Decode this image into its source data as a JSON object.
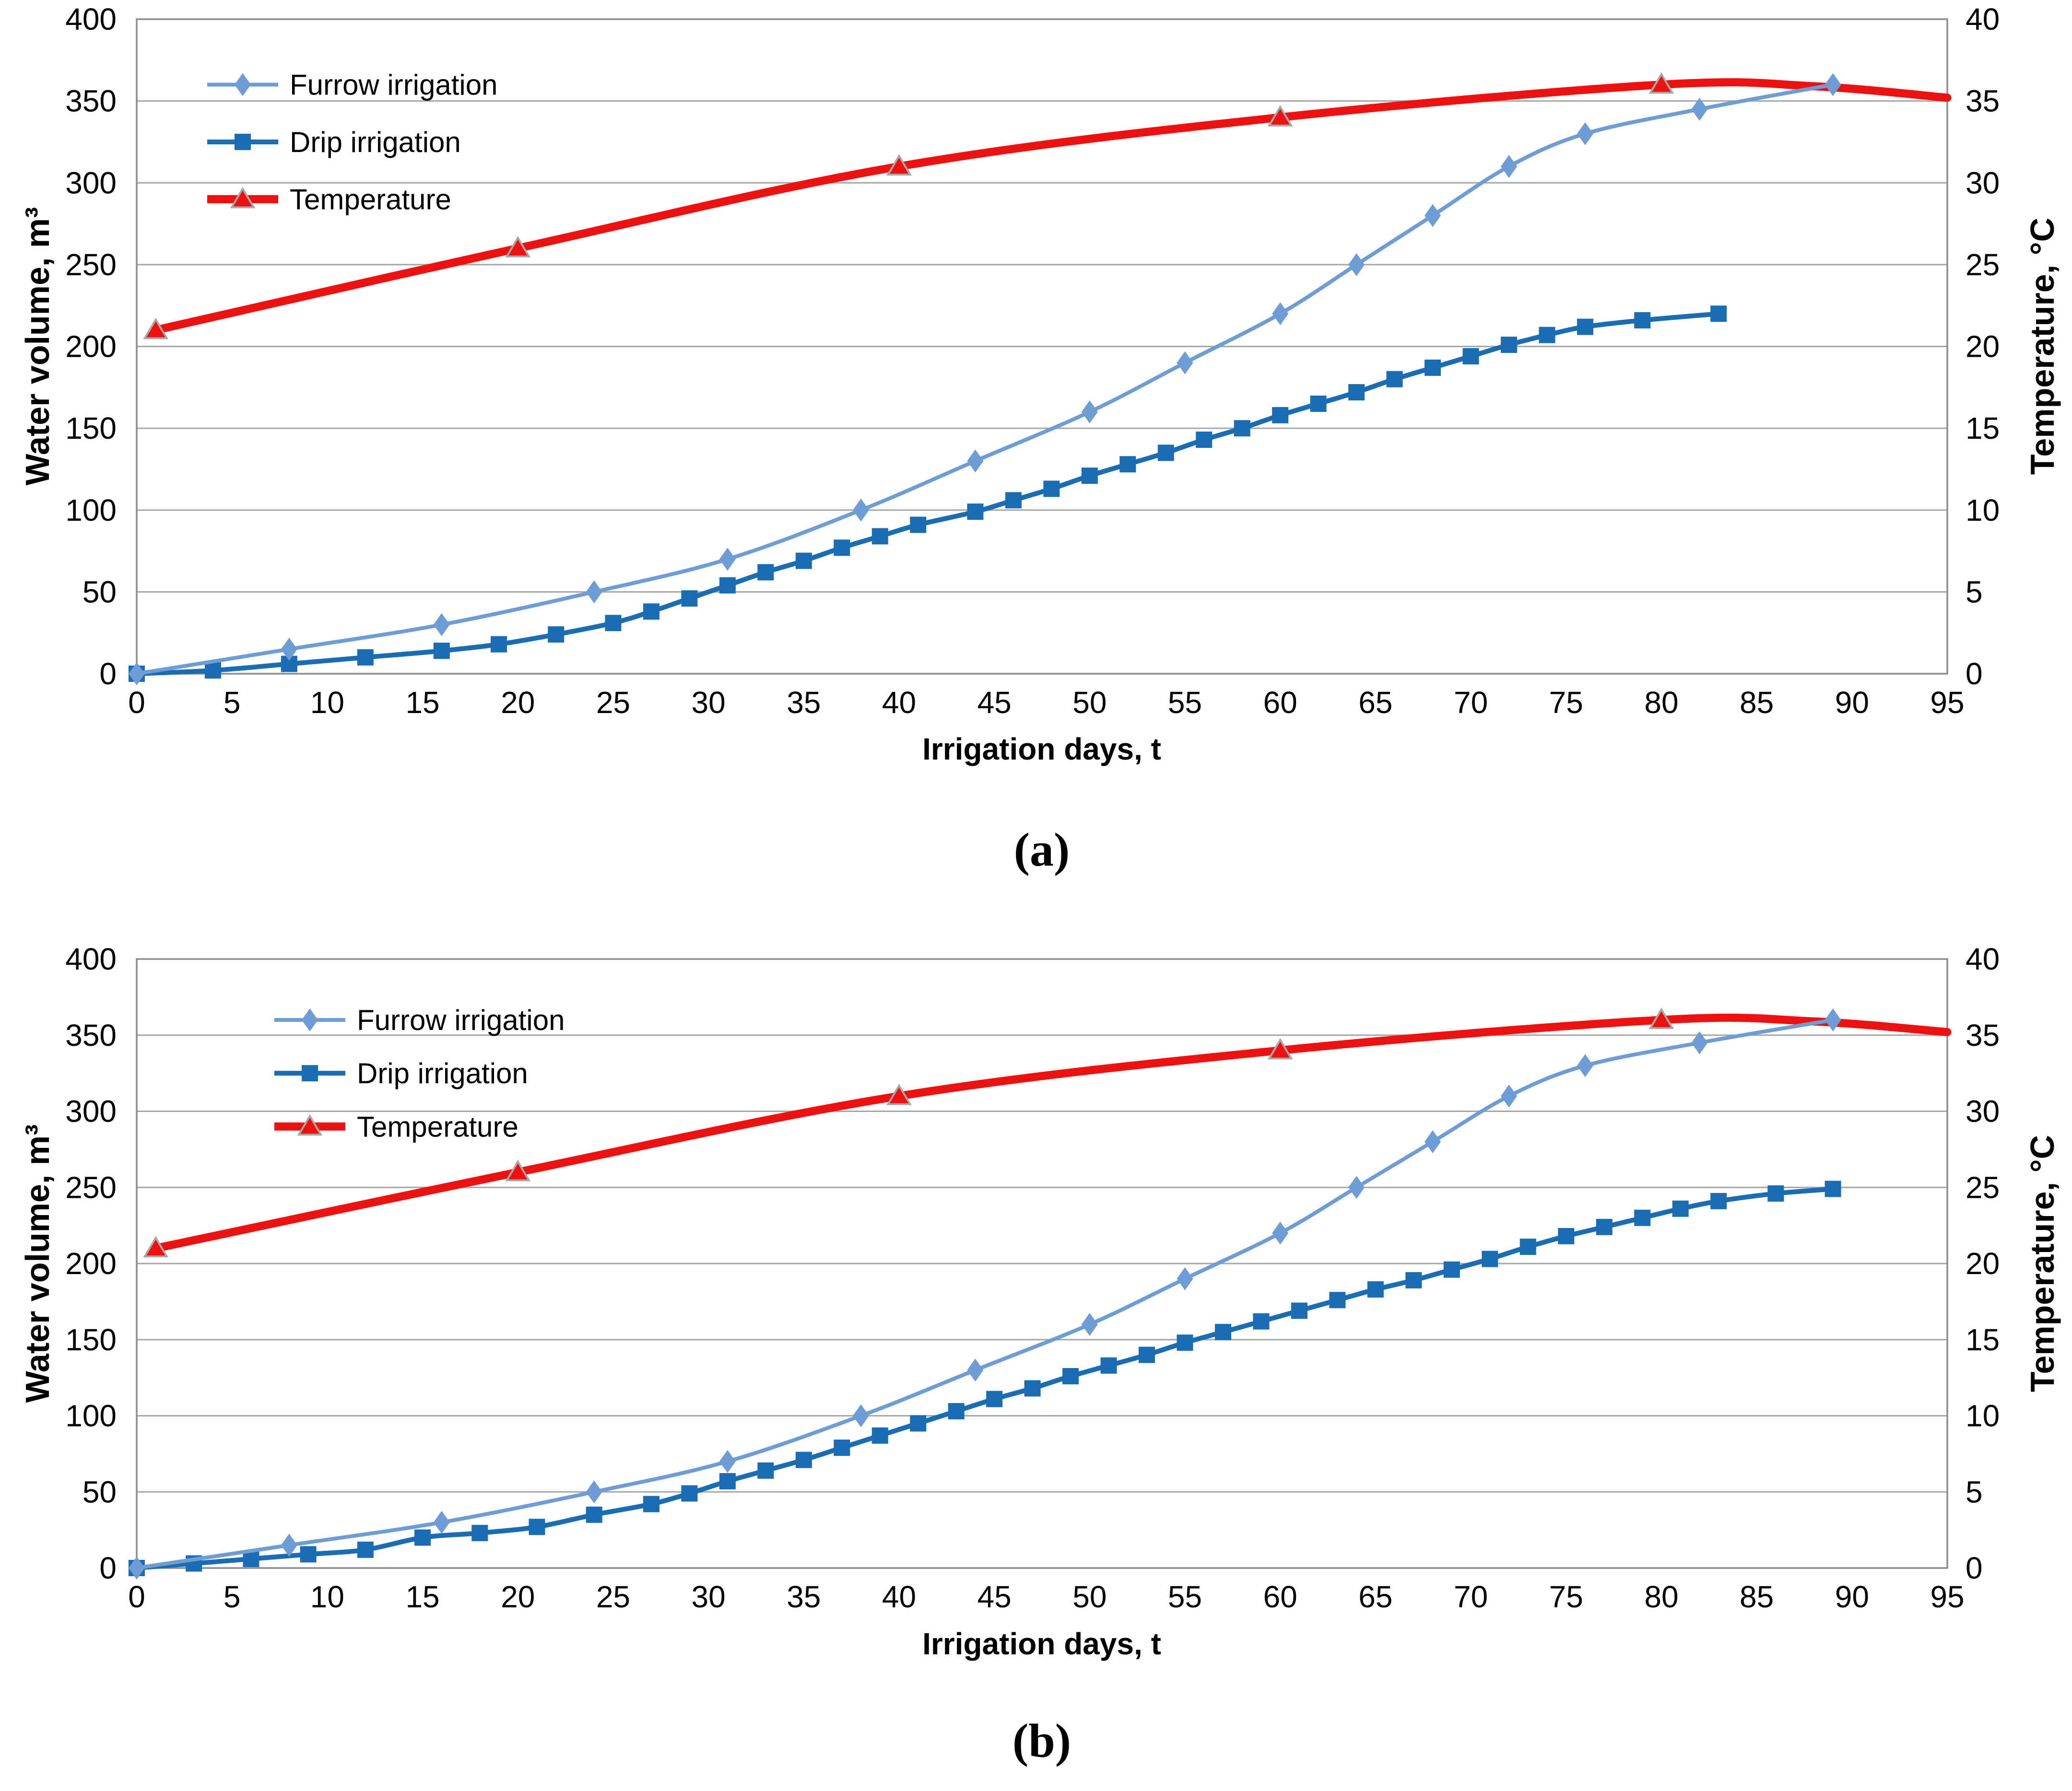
{
  "colors": {
    "furrow": "#6D9DD4",
    "drip": "#1A6CB3",
    "temperature": "#EE1110",
    "marker_outline": "#A9A9A9",
    "grid": "#A6A6A6",
    "axis_border": "#8C8C8C",
    "text": "#000000",
    "background": "#FFFFFF"
  },
  "chart_data": [
    {
      "id": "a",
      "type": "line",
      "caption": "(a)",
      "x_axis": {
        "label": "Irrigation days, t",
        "min": 0,
        "max": 95,
        "step": 5,
        "ticks": [
          0,
          5,
          10,
          15,
          20,
          25,
          30,
          35,
          40,
          45,
          50,
          55,
          60,
          65,
          70,
          75,
          80,
          85,
          90,
          95
        ]
      },
      "y_axis_left": {
        "label": "Water volume, m³",
        "min": 0,
        "max": 400,
        "step": 50,
        "ticks": [
          400,
          350,
          300,
          250,
          200,
          150,
          100,
          50,
          0
        ]
      },
      "y_axis_right": {
        "label": "Temperature, °C",
        "min": 0,
        "max": 40,
        "step": 5,
        "ticks": [
          40,
          35,
          30,
          25,
          20,
          15,
          10,
          5,
          0
        ]
      },
      "grid": "horizontal-only",
      "legend_position": "inside-top-left",
      "series": [
        {
          "name": "Furrow irrigation",
          "marker": "diamond",
          "color_key": "furrow",
          "axis": "left",
          "points": [
            [
              0,
              0
            ],
            [
              8,
              15
            ],
            [
              16,
              30
            ],
            [
              24,
              50
            ],
            [
              31,
              70
            ],
            [
              38,
              100
            ],
            [
              44,
              130
            ],
            [
              50,
              160
            ],
            [
              55,
              190
            ],
            [
              60,
              220
            ],
            [
              64,
              250
            ],
            [
              68,
              280
            ],
            [
              72,
              310
            ],
            [
              76,
              330
            ],
            [
              82,
              345
            ],
            [
              89,
              360
            ]
          ]
        },
        {
          "name": "Drip irrigation",
          "marker": "square",
          "color_key": "drip",
          "axis": "left",
          "points": [
            [
              0,
              0
            ],
            [
              4,
              2
            ],
            [
              8,
              6
            ],
            [
              12,
              10
            ],
            [
              16,
              14
            ],
            [
              19,
              18
            ],
            [
              22,
              24
            ],
            [
              25,
              31
            ],
            [
              27,
              38
            ],
            [
              29,
              46
            ],
            [
              31,
              54
            ],
            [
              33,
              62
            ],
            [
              35,
              69
            ],
            [
              37,
              77
            ],
            [
              39,
              84
            ],
            [
              41,
              91
            ],
            [
              44,
              99
            ],
            [
              46,
              106
            ],
            [
              48,
              113
            ],
            [
              50,
              121
            ],
            [
              52,
              128
            ],
            [
              54,
              135
            ],
            [
              56,
              143
            ],
            [
              58,
              150
            ],
            [
              60,
              158
            ],
            [
              62,
              165
            ],
            [
              64,
              172
            ],
            [
              66,
              180
            ],
            [
              68,
              187
            ],
            [
              70,
              194
            ],
            [
              72,
              201
            ],
            [
              74,
              207
            ],
            [
              76,
              212
            ],
            [
              79,
              216
            ],
            [
              83,
              220
            ]
          ]
        },
        {
          "name": "Temperature",
          "marker": "triangle",
          "color_key": "temperature",
          "axis": "right",
          "points": [
            [
              1,
              21
            ],
            [
              20,
              26
            ],
            [
              40,
              31
            ],
            [
              60,
              34
            ],
            [
              80,
              36
            ],
            [
              88,
              35.9
            ],
            [
              95,
              35.2
            ]
          ],
          "marker_days": [
            1,
            20,
            40,
            60,
            80
          ]
        }
      ]
    },
    {
      "id": "b",
      "type": "line",
      "caption": "(b)",
      "x_axis": {
        "label": "Irrigation days, t",
        "min": 0,
        "max": 95,
        "step": 5,
        "ticks": [
          0,
          5,
          10,
          15,
          20,
          25,
          30,
          35,
          40,
          45,
          50,
          55,
          60,
          65,
          70,
          75,
          80,
          85,
          90,
          95
        ]
      },
      "y_axis_left": {
        "label": "Water volume, m³",
        "min": 0,
        "max": 400,
        "step": 50,
        "ticks": [
          400,
          350,
          300,
          250,
          200,
          150,
          100,
          50,
          0
        ]
      },
      "y_axis_right": {
        "label": "Temperature, °C",
        "min": 0,
        "max": 40,
        "step": 5,
        "ticks": [
          40,
          35,
          30,
          25,
          20,
          15,
          10,
          5,
          0
        ]
      },
      "grid": "horizontal-only",
      "legend_position": "inside-top-left",
      "series": [
        {
          "name": "Furrow irrigation",
          "marker": "diamond",
          "color_key": "furrow",
          "axis": "left",
          "points": [
            [
              0,
              0
            ],
            [
              8,
              15
            ],
            [
              16,
              30
            ],
            [
              24,
              50
            ],
            [
              31,
              70
            ],
            [
              38,
              100
            ],
            [
              44,
              130
            ],
            [
              50,
              160
            ],
            [
              55,
              190
            ],
            [
              60,
              220
            ],
            [
              64,
              250
            ],
            [
              68,
              280
            ],
            [
              72,
              310
            ],
            [
              76,
              330
            ],
            [
              82,
              345
            ],
            [
              89,
              360
            ]
          ]
        },
        {
          "name": "Drip irrigation",
          "marker": "square",
          "color_key": "drip",
          "axis": "left",
          "points": [
            [
              0,
              0
            ],
            [
              3,
              3
            ],
            [
              6,
              6
            ],
            [
              9,
              9
            ],
            [
              12,
              12
            ],
            [
              15,
              20
            ],
            [
              18,
              23
            ],
            [
              21,
              27
            ],
            [
              24,
              35
            ],
            [
              27,
              42
            ],
            [
              29,
              49
            ],
            [
              31,
              57
            ],
            [
              33,
              64
            ],
            [
              35,
              71
            ],
            [
              37,
              79
            ],
            [
              39,
              87
            ],
            [
              41,
              95
            ],
            [
              43,
              103
            ],
            [
              45,
              111
            ],
            [
              47,
              118
            ],
            [
              49,
              126
            ],
            [
              51,
              133
            ],
            [
              53,
              140
            ],
            [
              55,
              148
            ],
            [
              57,
              155
            ],
            [
              59,
              162
            ],
            [
              61,
              169
            ],
            [
              63,
              176
            ],
            [
              65,
              183
            ],
            [
              67,
              189
            ],
            [
              69,
              196
            ],
            [
              71,
              203
            ],
            [
              73,
              211
            ],
            [
              75,
              218
            ],
            [
              77,
              224
            ],
            [
              79,
              230
            ],
            [
              81,
              236
            ],
            [
              83,
              241
            ],
            [
              86,
              246
            ],
            [
              89,
              249
            ]
          ]
        },
        {
          "name": "Temperature",
          "marker": "triangle",
          "color_key": "temperature",
          "axis": "right",
          "points": [
            [
              1,
              21
            ],
            [
              20,
              26
            ],
            [
              40,
              31
            ],
            [
              60,
              34
            ],
            [
              80,
              36
            ],
            [
              88,
              35.9
            ],
            [
              95,
              35.2
            ]
          ],
          "marker_days": [
            1,
            20,
            40,
            60,
            80
          ]
        }
      ]
    }
  ]
}
